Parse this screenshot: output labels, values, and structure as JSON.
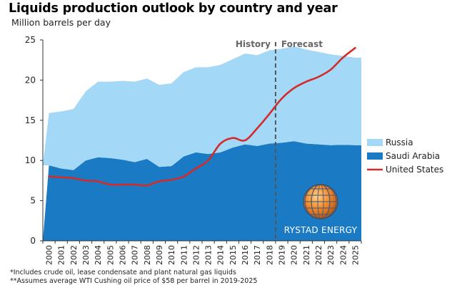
{
  "chart_data": {
    "type": "area",
    "title": "Liquids production outlook by country and year",
    "ylabel": "Million barrels per day",
    "ylim": [
      0,
      25
    ],
    "yticks": [
      0,
      5,
      10,
      15,
      20,
      25
    ],
    "x": [
      "2000",
      "2001",
      "2002",
      "2003",
      "2004",
      "2005",
      "2006",
      "2007",
      "2008",
      "2009",
      "2010",
      "2011",
      "2012",
      "2013",
      "2014",
      "2015",
      "2016",
      "2017",
      "2018",
      "2019",
      "2020",
      "2021",
      "2022",
      "2023",
      "2024",
      "2025"
    ],
    "series": [
      {
        "name": "Saudi Arabia",
        "kind": "area",
        "color": "#1a7bc4",
        "values": [
          9.4,
          9.0,
          8.8,
          10.0,
          10.4,
          10.3,
          10.1,
          9.8,
          10.2,
          9.2,
          9.3,
          10.5,
          11.0,
          10.8,
          11.0,
          11.6,
          12.0,
          11.8,
          12.1,
          12.2,
          12.4,
          12.1,
          12.0,
          11.9,
          11.95,
          11.9
        ]
      },
      {
        "name": "Russia",
        "kind": "area",
        "color": "#a3d9f7",
        "values": [
          6.5,
          7.1,
          7.6,
          8.6,
          9.4,
          9.5,
          9.8,
          10.0,
          10.0,
          10.2,
          10.3,
          10.5,
          10.6,
          10.8,
          10.9,
          11.0,
          11.3,
          11.3,
          11.6,
          11.7,
          11.8,
          11.7,
          11.5,
          11.3,
          11.05,
          10.9
        ]
      },
      {
        "name": "United States",
        "kind": "line",
        "color": "#d42a2a",
        "values": [
          8.0,
          7.9,
          7.8,
          7.5,
          7.4,
          7.0,
          7.0,
          7.0,
          6.9,
          7.4,
          7.6,
          8.0,
          9.0,
          10.0,
          12.1,
          12.8,
          12.5,
          14.0,
          15.8,
          17.7,
          19.0,
          19.8,
          20.4,
          21.3,
          22.8,
          24.0
        ]
      }
    ],
    "divider_after": "2018",
    "phase_labels": {
      "left": "History",
      "right": "Forecast"
    },
    "legend": [
      "Russia",
      "Saudi Arabia",
      "United States"
    ],
    "legend_position": "right",
    "grid": false
  },
  "watermark": {
    "text": "RYSTAD ENERGY"
  },
  "footnotes": [
    "*Includes crude oil, lease condensate and plant natural gas liquids",
    "**Assumes average WTI Cushing oil price of $58 per barrel in 2019-2025"
  ]
}
